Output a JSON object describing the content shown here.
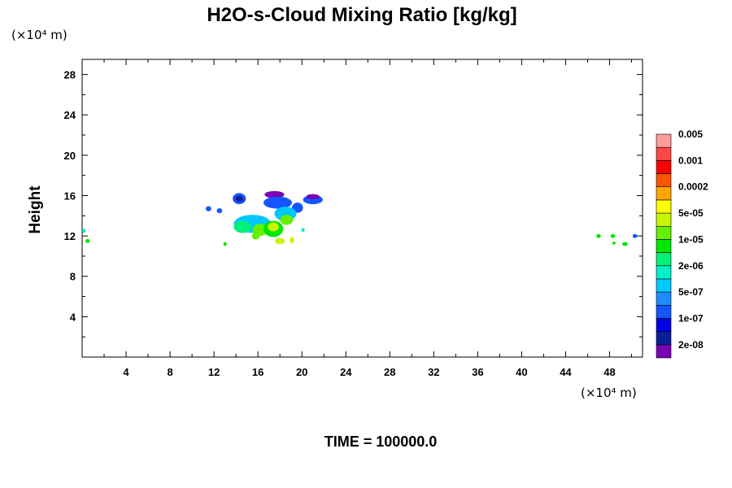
{
  "chart_data": {
    "type": "heatmap",
    "title": "H2O-s-Cloud Mixing Ratio [kg/kg]",
    "ylabel": "Height",
    "x_unit": "(×10⁴ m)",
    "y_unit": "(×10⁴ m)",
    "xlim": [
      0,
      51
    ],
    "ylim": [
      0,
      29.5
    ],
    "x_ticks": [
      4,
      8,
      12,
      16,
      20,
      24,
      28,
      32,
      36,
      40,
      44,
      48
    ],
    "y_ticks": [
      4,
      8,
      12,
      16,
      20,
      24,
      28
    ],
    "colorbar": {
      "colors": [
        "#7a00b4",
        "#0a1e96",
        "#0000e6",
        "#1455ff",
        "#1e8cff",
        "#00c8ff",
        "#00f0c8",
        "#00f078",
        "#00e600",
        "#64f000",
        "#c8f500",
        "#ffff00",
        "#ffa500",
        "#ff5500",
        "#ff0000",
        "#ff4646",
        "#ff9b9b"
      ],
      "labels": [
        "2e-08",
        "1e-07",
        "5e-07",
        "2e-06",
        "1e-05",
        "5e-05",
        "0.0002",
        "0.001",
        "0.005"
      ]
    },
    "cloud_blobs": [
      {
        "x": 14.3,
        "y": 15.7,
        "rx": 0.6,
        "ry": 0.55,
        "color": "#1455ff"
      },
      {
        "x": 14.3,
        "y": 15.7,
        "rx": 0.35,
        "ry": 0.3,
        "color": "#0a1e96"
      },
      {
        "x": 11.5,
        "y": 14.7,
        "rx": 0.25,
        "ry": 0.25,
        "color": "#1455ff"
      },
      {
        "x": 12.5,
        "y": 14.5,
        "rx": 0.25,
        "ry": 0.25,
        "color": "#1455ff"
      },
      {
        "x": 17.5,
        "y": 16.1,
        "rx": 0.9,
        "ry": 0.35,
        "color": "#7a00b4"
      },
      {
        "x": 17.8,
        "y": 15.3,
        "rx": 1.3,
        "ry": 0.6,
        "color": "#1455ff"
      },
      {
        "x": 21.0,
        "y": 15.6,
        "rx": 0.9,
        "ry": 0.45,
        "color": "#1455ff"
      },
      {
        "x": 21.0,
        "y": 15.9,
        "rx": 0.6,
        "ry": 0.25,
        "color": "#7a00b4"
      },
      {
        "x": 19.6,
        "y": 14.8,
        "rx": 0.5,
        "ry": 0.5,
        "color": "#1455ff"
      },
      {
        "x": 18.5,
        "y": 14.2,
        "rx": 1.0,
        "ry": 0.7,
        "color": "#00c8ff"
      },
      {
        "x": 15.5,
        "y": 13.2,
        "rx": 1.7,
        "ry": 0.9,
        "color": "#00c8ff"
      },
      {
        "x": 14.6,
        "y": 12.9,
        "rx": 0.8,
        "ry": 0.6,
        "color": "#00f078"
      },
      {
        "x": 16.2,
        "y": 12.6,
        "rx": 0.7,
        "ry": 0.6,
        "color": "#64f000"
      },
      {
        "x": 17.4,
        "y": 12.7,
        "rx": 0.9,
        "ry": 0.8,
        "color": "#00e600"
      },
      {
        "x": 17.4,
        "y": 12.9,
        "rx": 0.5,
        "ry": 0.45,
        "color": "#c8f500"
      },
      {
        "x": 18.6,
        "y": 13.6,
        "rx": 0.6,
        "ry": 0.5,
        "color": "#64f000"
      },
      {
        "x": 15.8,
        "y": 12.0,
        "rx": 0.35,
        "ry": 0.35,
        "color": "#64f000"
      },
      {
        "x": 18.0,
        "y": 11.5,
        "rx": 0.45,
        "ry": 0.3,
        "color": "#c8f500"
      },
      {
        "x": 19.1,
        "y": 11.6,
        "rx": 0.2,
        "ry": 0.3,
        "color": "#c8f500"
      },
      {
        "x": 20.1,
        "y": 12.6,
        "rx": 0.15,
        "ry": 0.2,
        "color": "#00f0c8"
      },
      {
        "x": 13.0,
        "y": 11.2,
        "rx": 0.15,
        "ry": 0.2,
        "color": "#00e600"
      },
      {
        "x": 0.15,
        "y": 12.5,
        "rx": 0.15,
        "ry": 0.2,
        "color": "#00f0c8"
      },
      {
        "x": 0.5,
        "y": 11.5,
        "rx": 0.2,
        "ry": 0.2,
        "color": "#00e600"
      },
      {
        "x": 47.0,
        "y": 12.0,
        "rx": 0.2,
        "ry": 0.2,
        "color": "#00e600"
      },
      {
        "x": 48.3,
        "y": 12.0,
        "rx": 0.2,
        "ry": 0.2,
        "color": "#00e600"
      },
      {
        "x": 48.4,
        "y": 11.3,
        "rx": 0.15,
        "ry": 0.15,
        "color": "#00e600"
      },
      {
        "x": 49.4,
        "y": 11.2,
        "rx": 0.25,
        "ry": 0.2,
        "color": "#00e600"
      },
      {
        "x": 50.3,
        "y": 12.0,
        "rx": 0.2,
        "ry": 0.2,
        "color": "#1455ff"
      }
    ]
  },
  "time_label": "TIME = 100000.0"
}
